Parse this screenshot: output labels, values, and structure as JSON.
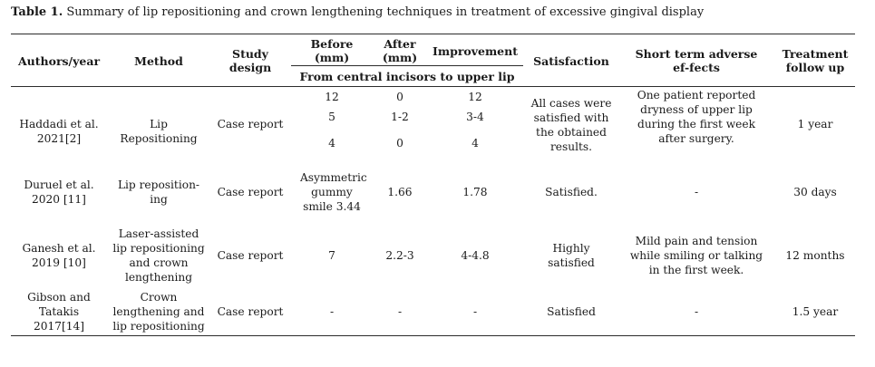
{
  "caption": {
    "label": "Table 1.",
    "text": " Summary of lip repositioning and crown lengthening techniques in treatment of excessive gingival display"
  },
  "headers": {
    "authors": "Authors/year",
    "method": "Method",
    "design": "Study design",
    "before": "Before (mm)",
    "after": "After (mm)",
    "improvement": "Improvement",
    "span": "From central incisors to upper lip",
    "satisfaction": "Satisfaction",
    "adverse": "Short term adverse ef-fects",
    "followup": "Treatment follow up"
  },
  "rows": [
    {
      "authors": "Haddadi et al. 2021[2]",
      "method": "Lip Repositioning",
      "design": "Case report",
      "before": [
        "12",
        "5",
        "4"
      ],
      "after": [
        "0",
        "1-2",
        "0"
      ],
      "improvement": [
        "12",
        "3-4",
        "4"
      ],
      "satisfaction": "All cases were satisfied with the obtained results.",
      "adverse": "One patient reported dryness of upper lip during the first week after surgery.",
      "followup": "1 year"
    },
    {
      "authors": "Duruel et al. 2020 [11]",
      "method": "Lip reposition-ing",
      "design": "Case report",
      "before": "Asymmetric gummy smile 3.44",
      "after": "1.66",
      "improvement": "1.78",
      "satisfaction": "Satisfied.",
      "adverse": "-",
      "followup": "30 days"
    },
    {
      "authors": "Ganesh et al. 2019 [10]",
      "method": "Laser-assisted lip repositioning and crown lengthening",
      "design": "Case report",
      "before": "7",
      "after": "2.2-3",
      "improvement": "4-4.8",
      "satisfaction": "Highly satisfied",
      "adverse": "Mild pain and tension while smiling or talking in the first week.",
      "followup": "12 months"
    },
    {
      "authors": "Gibson and Tatakis 2017[14]",
      "method": "Crown lengthening and lip repositioning",
      "design": "Case report",
      "before": "-",
      "after": "-",
      "improvement": "-",
      "satisfaction": "Satisfied",
      "adverse": "-",
      "followup": "1.5 year"
    }
  ]
}
